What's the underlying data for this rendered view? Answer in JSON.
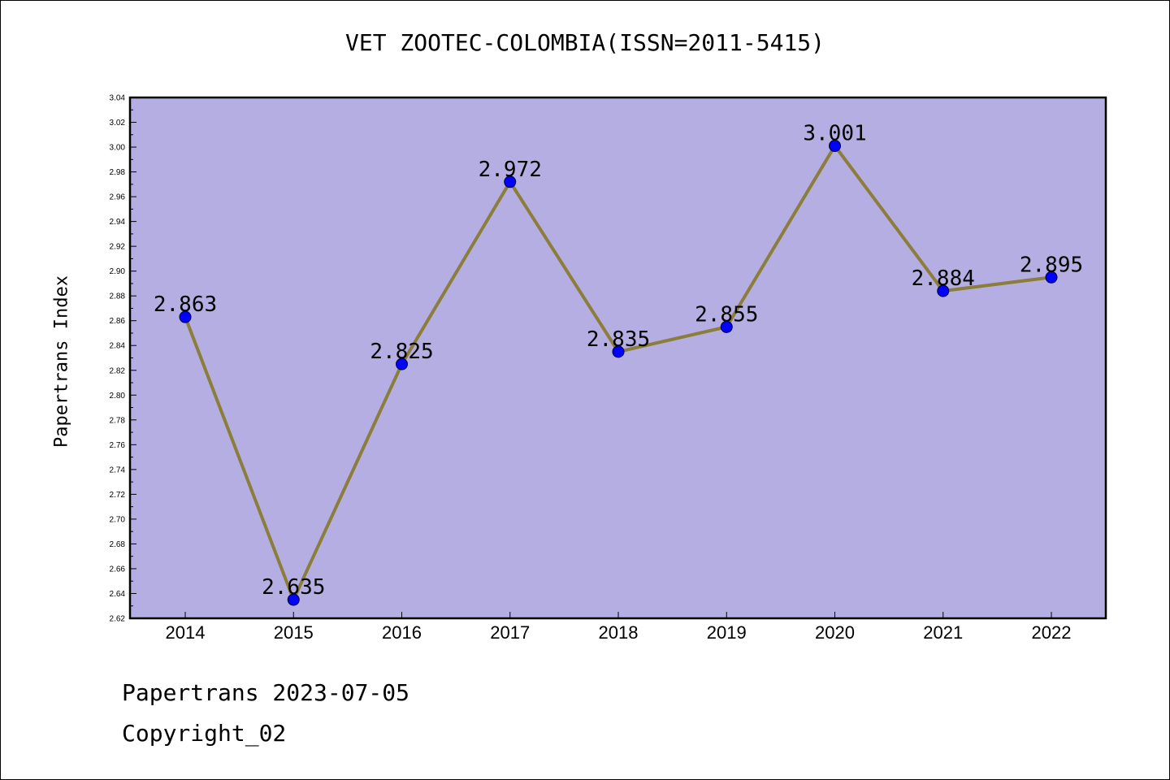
{
  "chart_data": {
    "type": "line",
    "title": "VET ZOOTEC-COLOMBIA(ISSN=2011-5415)",
    "xlabel": "",
    "ylabel": "Papertrans Index",
    "categories": [
      "2014",
      "2015",
      "2016",
      "2017",
      "2018",
      "2019",
      "2020",
      "2021",
      "2022"
    ],
    "values": [
      2.863,
      2.635,
      2.825,
      2.972,
      2.835,
      2.855,
      3.001,
      2.884,
      2.895
    ],
    "data_labels": [
      "2.863",
      "2.635",
      "2.825",
      "2.972",
      "2.835",
      "2.855",
      "3.001",
      "2.884",
      "2.895"
    ],
    "ylim": [
      2.62,
      3.04
    ],
    "yticks": [
      2.62,
      2.64,
      2.66,
      2.68,
      2.7,
      2.72,
      2.74,
      2.76,
      2.78,
      2.8,
      2.82,
      2.84,
      2.86,
      2.88,
      2.9,
      2.92,
      2.94,
      2.96,
      2.98,
      3.0,
      3.02,
      3.04
    ],
    "ytick_labels": [
      "2.62",
      "2.64",
      "2.66",
      "2.68",
      "2.70",
      "2.72",
      "2.74",
      "2.76",
      "2.78",
      "2.80",
      "2.82",
      "2.84",
      "2.86",
      "2.88",
      "2.90",
      "2.92",
      "2.94",
      "2.96",
      "2.98",
      "3.00",
      "3.02",
      "3.04"
    ],
    "grid": false,
    "colors": {
      "plot_background": "#b5aee2",
      "line": "#8b7d3a",
      "marker": "#0000ff"
    }
  },
  "footer": {
    "line1": "Papertrans 2023-07-05",
    "line2": "Copyright_02"
  }
}
